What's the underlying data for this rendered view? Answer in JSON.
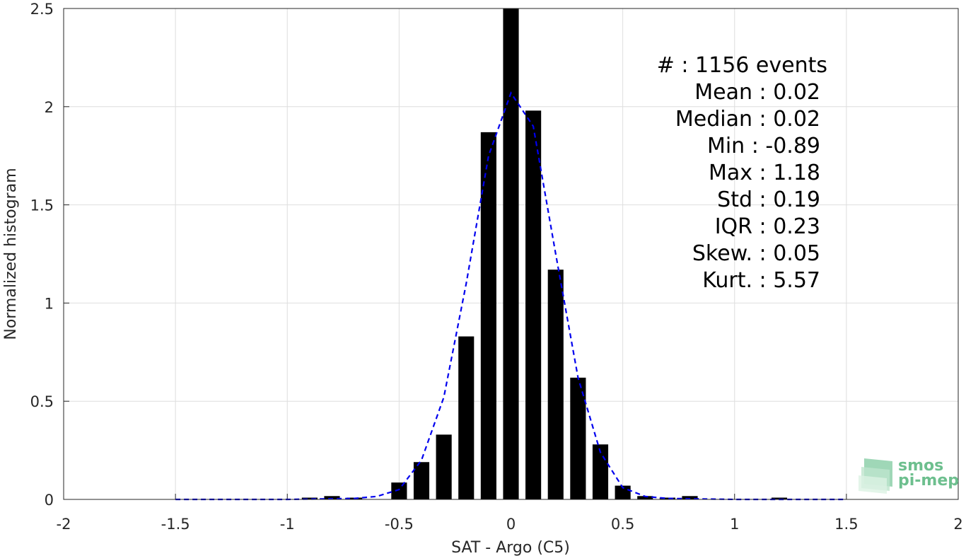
{
  "chart_data": {
    "type": "bar",
    "xlabel": "SAT - Argo (C5)",
    "ylabel": "Normalized histogram",
    "xlim": [
      -2,
      2
    ],
    "ylim": [
      0,
      2.5
    ],
    "grid": true,
    "xticks": [
      "-2",
      "-1.5",
      "-1",
      "-0.5",
      "0",
      "0.5",
      "1",
      "1.5",
      "2"
    ],
    "yticks": [
      "0",
      "0.5",
      "1",
      "1.5",
      "2",
      "2.5"
    ],
    "bar_width": 0.07,
    "bar_color": "#000000",
    "bars": [
      {
        "x": -0.9,
        "y": 0.009
      },
      {
        "x": -0.8,
        "y": 0.017
      },
      {
        "x": -0.7,
        "y": 0.009
      },
      {
        "x": -0.5,
        "y": 0.086
      },
      {
        "x": -0.4,
        "y": 0.19
      },
      {
        "x": -0.3,
        "y": 0.33
      },
      {
        "x": -0.2,
        "y": 0.83
      },
      {
        "x": -0.1,
        "y": 1.87
      },
      {
        "x": 0.0,
        "y": 2.5
      },
      {
        "x": 0.1,
        "y": 1.98
      },
      {
        "x": 0.2,
        "y": 1.17
      },
      {
        "x": 0.3,
        "y": 0.62
      },
      {
        "x": 0.4,
        "y": 0.28
      },
      {
        "x": 0.5,
        "y": 0.07
      },
      {
        "x": 0.6,
        "y": 0.017
      },
      {
        "x": 0.7,
        "y": 0.009
      },
      {
        "x": 0.8,
        "y": 0.017
      },
      {
        "x": 1.2,
        "y": 0.009
      }
    ],
    "fit_curve": {
      "style": "dashed",
      "color": "#0000ee",
      "x": [
        -1.5,
        -1.0,
        -0.7,
        -0.6,
        -0.5,
        -0.4,
        -0.3,
        -0.2,
        -0.1,
        0.0,
        0.1,
        0.2,
        0.3,
        0.4,
        0.5,
        0.6,
        0.7,
        1.0,
        1.5
      ],
      "y": [
        0.0,
        0.0,
        0.005,
        0.015,
        0.05,
        0.2,
        0.52,
        1.1,
        1.75,
        2.07,
        1.9,
        1.25,
        0.62,
        0.24,
        0.06,
        0.015,
        0.005,
        0.0,
        0.0
      ]
    },
    "annotations": {
      "count_line": "#  : 1156 events",
      "stats": [
        {
          "label": "Mean",
          "value": "0.02"
        },
        {
          "label": "Median",
          "value": "0.02"
        },
        {
          "label": "Min",
          "value": "-0.89"
        },
        {
          "label": "Max",
          "value": "1.18"
        },
        {
          "label": "Std",
          "value": "0.19"
        },
        {
          "label": "IQR",
          "value": "0.23"
        },
        {
          "label": "Skew.",
          "value": "0.05"
        },
        {
          "label": "Kurt.",
          "value": "5.57"
        }
      ]
    }
  },
  "logo": {
    "line1": "smos",
    "line2": "pi-mep",
    "color": "#6dbf8e"
  }
}
